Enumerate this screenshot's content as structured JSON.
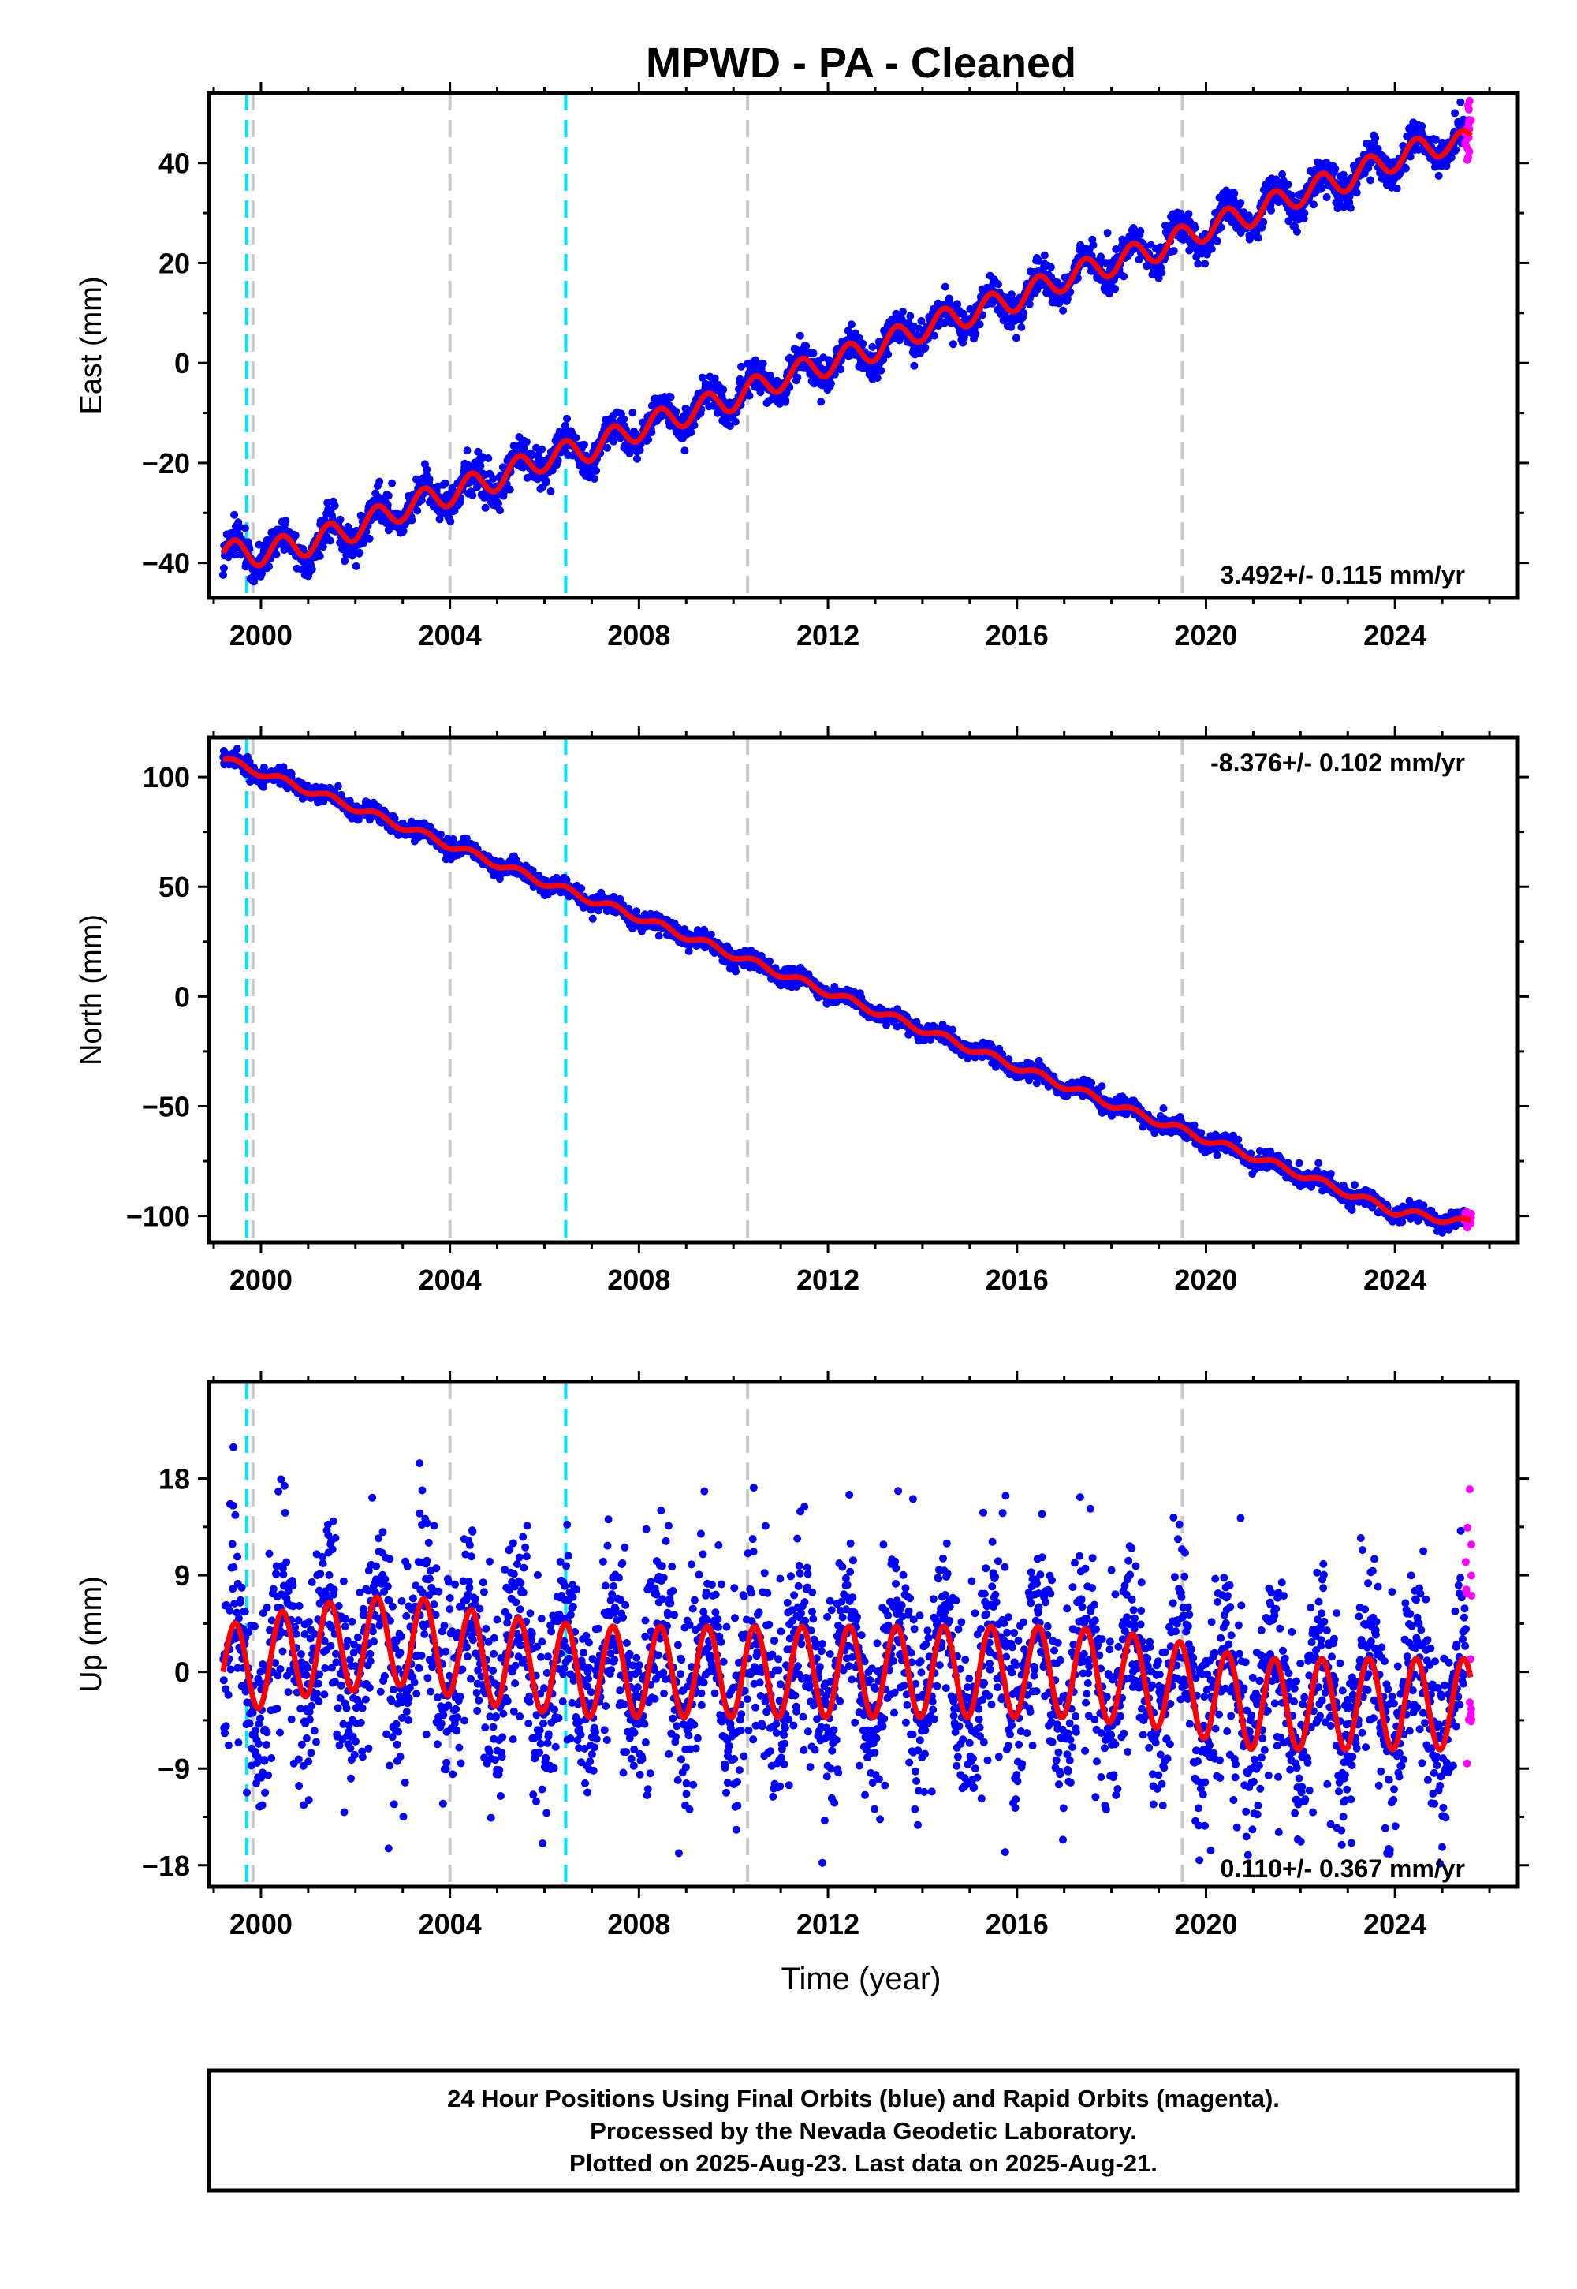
{
  "title": "MPWD  - PA - Cleaned",
  "xlabel": "Time (year)",
  "footer": {
    "line1": "24 Hour Positions Using Final Orbits (blue) and Rapid Orbits (magenta).",
    "line2": "Processed by the Nevada Geodetic Laboratory.",
    "line3": "Plotted on 2025-Aug-23. Last data on 2025-Aug-21."
  },
  "colors": {
    "final": "#0000ff",
    "rapid": "#ff00ff",
    "model": "#ff0000",
    "equipment_change": "#c8c8c8",
    "earthquake": "#00e5ff"
  },
  "chart_data": [
    {
      "type": "scatter",
      "component": "East",
      "ylabel": "East (mm)",
      "rate_label": "3.492+/- 0.115 mm/yr",
      "xlim": [
        1998.9,
        2026.6
      ],
      "ylim": [
        -47,
        54
      ],
      "yticks": [
        -40,
        -20,
        0,
        20,
        40
      ],
      "ytick_labels": [
        "−40",
        "−20",
        "0",
        "20",
        "40"
      ],
      "xticks": [
        2000,
        2004,
        2008,
        2012,
        2016,
        2020,
        2024
      ],
      "xtick_labels": [
        "2000",
        "2004",
        "2008",
        "2012",
        "2016",
        "2020",
        "2024"
      ],
      "trend": {
        "start_year": 1999.2,
        "end_year": 2025.6,
        "start_value": -38.5,
        "end_value": 45.0
      },
      "seasonal_amplitude": 3.0,
      "scatter_sd": 1.6,
      "series": [
        {
          "label": "final",
          "x": [
            1999.2,
            2000.0,
            2001.0,
            2002.0,
            2003.0,
            2004.0,
            2005.0,
            2006.0,
            2007.0,
            2008.0,
            2009.0,
            2010.0,
            2011.0,
            2012.0,
            2013.0,
            2014.0,
            2015.0,
            2016.0,
            2017.0,
            2018.0,
            2019.0,
            2020.0,
            2021.0,
            2022.0,
            2023.0,
            2024.0,
            2025.0
          ],
          "y": [
            -38,
            -38,
            -36,
            -33,
            -29,
            -26,
            -23,
            -19,
            -17,
            -13,
            -10,
            -7,
            -3,
            0,
            3,
            7,
            10,
            13,
            17,
            20,
            23,
            27,
            30,
            34,
            37,
            41,
            44
          ]
        },
        {
          "label": "rapid",
          "x": [
            2025.5,
            2025.55,
            2025.6
          ],
          "y": [
            44,
            47,
            51
          ]
        }
      ]
    },
    {
      "type": "scatter",
      "component": "North",
      "ylabel": "North (mm)",
      "rate_label": "-8.376+/- 0.102 mm/yr",
      "xlim": [
        1998.9,
        2026.6
      ],
      "ylim": [
        -112,
        118
      ],
      "yticks": [
        -100,
        -50,
        0,
        50,
        100
      ],
      "ytick_labels": [
        "−100",
        "−50",
        "0",
        "50",
        "100"
      ],
      "xticks": [
        2000,
        2004,
        2008,
        2012,
        2016,
        2020,
        2024
      ],
      "xtick_labels": [
        "2000",
        "2004",
        "2008",
        "2012",
        "2016",
        "2020",
        "2024"
      ],
      "trend": {
        "start_year": 1999.2,
        "end_year": 2025.6,
        "start_value": 108.0,
        "end_value": -103.0
      },
      "seasonal_amplitude": 2.0,
      "scatter_sd": 1.8,
      "series": [
        {
          "label": "final",
          "x": [
            1999.2,
            2000.0,
            2002.0,
            2004.0,
            2006.0,
            2008.0,
            2010.0,
            2012.0,
            2014.0,
            2016.0,
            2018.0,
            2020.0,
            2022.0,
            2024.0,
            2025.5
          ],
          "y": [
            108,
            102,
            86,
            69,
            52,
            36,
            19,
            2,
            -15,
            -32,
            -49,
            -65,
            -81,
            -98,
            -103
          ]
        },
        {
          "label": "rapid",
          "x": [
            2025.5,
            2025.55,
            2025.6
          ],
          "y": [
            -103,
            -101,
            -99
          ]
        }
      ]
    },
    {
      "type": "scatter",
      "component": "Up",
      "ylabel": "Up (mm)",
      "rate_label": "0.110+/- 0.367 mm/yr",
      "xlim": [
        1998.9,
        2026.6
      ],
      "ylim": [
        -20,
        27
      ],
      "yticks": [
        -18,
        -9,
        0,
        9,
        18
      ],
      "ytick_labels": [
        "−18",
        "−9",
        "0",
        "9",
        "18"
      ],
      "xticks": [
        2000,
        2004,
        2008,
        2012,
        2016,
        2020,
        2024
      ],
      "xtick_labels": [
        "2000",
        "2004",
        "2008",
        "2012",
        "2016",
        "2020",
        "2024"
      ],
      "trend": {
        "start_year": 1999.2,
        "end_year": 2025.6,
        "start_value": 0.0,
        "end_value": 0.0
      },
      "seasonal_amplitude": 5.0,
      "scatter_sd": 4.5,
      "series": [
        {
          "label": "final",
          "x": [
            1999.2,
            2001.0,
            2003.0,
            2005.0,
            2007.0,
            2009.0,
            2011.0,
            2013.0,
            2015.0,
            2017.0,
            2019.0,
            2021.0,
            2023.0,
            2025.5
          ],
          "y": [
            0,
            2,
            3,
            1,
            0,
            0,
            0,
            0,
            0,
            0,
            -1,
            -3,
            -3,
            -3
          ]
        },
        {
          "label": "rapid",
          "x": [
            2025.5,
            2025.55,
            2025.6
          ],
          "y": [
            -4,
            5,
            13
          ]
        }
      ]
    }
  ],
  "events": {
    "equipment_changes": [
      1999.83,
      2004.0,
      2010.3,
      2019.5
    ],
    "earthquakes": [
      1999.7,
      2006.45
    ]
  }
}
